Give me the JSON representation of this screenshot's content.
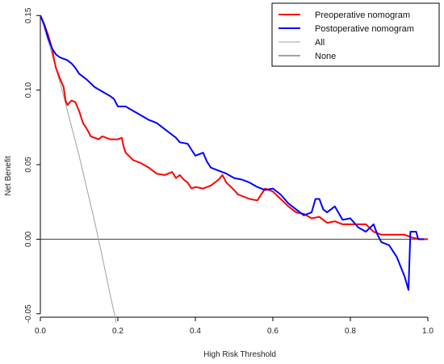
{
  "chart_data": {
    "type": "line",
    "title": "",
    "xlabel": "High Risk Threshold",
    "ylabel": "Net Benefit",
    "xlim": [
      0,
      1
    ],
    "ylim": [
      -0.055,
      0.155
    ],
    "xticks": [
      0,
      0.2,
      0.4,
      0.6,
      0.8,
      1
    ],
    "xtick_labels": [
      "0.0",
      "0.2",
      "0.4",
      "0.6",
      "0.8",
      "1.0"
    ],
    "yticks": [
      -0.05,
      0,
      0.05,
      0.1,
      0.15
    ],
    "ytick_labels": [
      "-0.05",
      "0.00",
      "0.05",
      "0.10",
      "0.15"
    ],
    "grid": false,
    "legend_position": "top-right",
    "series": [
      {
        "name": "Preoperative nomogram",
        "color": "#ff0000",
        "points": [
          [
            0.0,
            0.15
          ],
          [
            0.01,
            0.144
          ],
          [
            0.02,
            0.137
          ],
          [
            0.03,
            0.128
          ],
          [
            0.035,
            0.121
          ],
          [
            0.04,
            0.115
          ],
          [
            0.05,
            0.108
          ],
          [
            0.06,
            0.102
          ],
          [
            0.065,
            0.093
          ],
          [
            0.07,
            0.09
          ],
          [
            0.08,
            0.093
          ],
          [
            0.09,
            0.092
          ],
          [
            0.1,
            0.086
          ],
          [
            0.11,
            0.078
          ],
          [
            0.12,
            0.074
          ],
          [
            0.13,
            0.069
          ],
          [
            0.14,
            0.068
          ],
          [
            0.15,
            0.067
          ],
          [
            0.16,
            0.069
          ],
          [
            0.18,
            0.067
          ],
          [
            0.2,
            0.067
          ],
          [
            0.21,
            0.068
          ],
          [
            0.215,
            0.062
          ],
          [
            0.22,
            0.058
          ],
          [
            0.24,
            0.053
          ],
          [
            0.26,
            0.051
          ],
          [
            0.28,
            0.048
          ],
          [
            0.3,
            0.044
          ],
          [
            0.32,
            0.043
          ],
          [
            0.34,
            0.045
          ],
          [
            0.35,
            0.041
          ],
          [
            0.36,
            0.043
          ],
          [
            0.37,
            0.04
          ],
          [
            0.38,
            0.038
          ],
          [
            0.39,
            0.034
          ],
          [
            0.4,
            0.035
          ],
          [
            0.42,
            0.034
          ],
          [
            0.44,
            0.036
          ],
          [
            0.46,
            0.04
          ],
          [
            0.47,
            0.043
          ],
          [
            0.48,
            0.038
          ],
          [
            0.5,
            0.033
          ],
          [
            0.51,
            0.03
          ],
          [
            0.52,
            0.029
          ],
          [
            0.54,
            0.027
          ],
          [
            0.56,
            0.026
          ],
          [
            0.58,
            0.034
          ],
          [
            0.6,
            0.032
          ],
          [
            0.62,
            0.027
          ],
          [
            0.64,
            0.022
          ],
          [
            0.66,
            0.018
          ],
          [
            0.68,
            0.017
          ],
          [
            0.7,
            0.014
          ],
          [
            0.72,
            0.015
          ],
          [
            0.74,
            0.011
          ],
          [
            0.76,
            0.012
          ],
          [
            0.78,
            0.01
          ],
          [
            0.8,
            0.01
          ],
          [
            0.82,
            0.01
          ],
          [
            0.84,
            0.01
          ],
          [
            0.86,
            0.005
          ],
          [
            0.88,
            0.003
          ],
          [
            0.9,
            0.003
          ],
          [
            0.92,
            0.003
          ],
          [
            0.94,
            0.003
          ],
          [
            0.96,
            0.001
          ],
          [
            0.98,
            0.0
          ],
          [
            1.0,
            0.0
          ]
        ]
      },
      {
        "name": "Postoperative nomogram",
        "color": "#0000ff",
        "points": [
          [
            0.0,
            0.15
          ],
          [
            0.01,
            0.144
          ],
          [
            0.02,
            0.135
          ],
          [
            0.03,
            0.128
          ],
          [
            0.04,
            0.124
          ],
          [
            0.05,
            0.122
          ],
          [
            0.06,
            0.121
          ],
          [
            0.07,
            0.12
          ],
          [
            0.08,
            0.118
          ],
          [
            0.09,
            0.115
          ],
          [
            0.1,
            0.111
          ],
          [
            0.12,
            0.107
          ],
          [
            0.14,
            0.102
          ],
          [
            0.16,
            0.099
          ],
          [
            0.18,
            0.096
          ],
          [
            0.19,
            0.094
          ],
          [
            0.2,
            0.089
          ],
          [
            0.22,
            0.089
          ],
          [
            0.24,
            0.086
          ],
          [
            0.26,
            0.083
          ],
          [
            0.28,
            0.08
          ],
          [
            0.3,
            0.078
          ],
          [
            0.32,
            0.074
          ],
          [
            0.34,
            0.07
          ],
          [
            0.35,
            0.068
          ],
          [
            0.36,
            0.065
          ],
          [
            0.38,
            0.064
          ],
          [
            0.39,
            0.06
          ],
          [
            0.4,
            0.056
          ],
          [
            0.42,
            0.058
          ],
          [
            0.43,
            0.052
          ],
          [
            0.44,
            0.048
          ],
          [
            0.46,
            0.046
          ],
          [
            0.48,
            0.044
          ],
          [
            0.5,
            0.041
          ],
          [
            0.52,
            0.04
          ],
          [
            0.54,
            0.038
          ],
          [
            0.56,
            0.035
          ],
          [
            0.58,
            0.033
          ],
          [
            0.6,
            0.034
          ],
          [
            0.62,
            0.03
          ],
          [
            0.64,
            0.024
          ],
          [
            0.66,
            0.02
          ],
          [
            0.68,
            0.016
          ],
          [
            0.7,
            0.018
          ],
          [
            0.71,
            0.027
          ],
          [
            0.72,
            0.027
          ],
          [
            0.73,
            0.02
          ],
          [
            0.74,
            0.018
          ],
          [
            0.76,
            0.022
          ],
          [
            0.78,
            0.013
          ],
          [
            0.8,
            0.014
          ],
          [
            0.82,
            0.008
          ],
          [
            0.84,
            0.005
          ],
          [
            0.86,
            0.01
          ],
          [
            0.87,
            0.003
          ],
          [
            0.88,
            -0.002
          ],
          [
            0.9,
            -0.004
          ],
          [
            0.92,
            -0.012
          ],
          [
            0.94,
            -0.025
          ],
          [
            0.95,
            -0.034
          ],
          [
            0.955,
            0.005
          ],
          [
            0.97,
            0.005
          ],
          [
            0.975,
            0.0
          ],
          [
            0.99,
            0.0
          ]
        ]
      },
      {
        "name": "All",
        "color": "#a0a0a0",
        "points": [
          [
            0.0,
            0.15
          ],
          [
            0.02,
            0.133
          ],
          [
            0.04,
            0.115
          ],
          [
            0.06,
            0.096
          ],
          [
            0.08,
            0.076
          ],
          [
            0.1,
            0.056
          ],
          [
            0.12,
            0.034
          ],
          [
            0.14,
            0.012
          ],
          [
            0.16,
            -0.012
          ],
          [
            0.18,
            -0.037
          ],
          [
            0.196,
            -0.056
          ]
        ]
      },
      {
        "name": "None",
        "color": "#404040",
        "points": [
          [
            0.0,
            0.0
          ],
          [
            1.0,
            0.0
          ]
        ]
      }
    ]
  }
}
